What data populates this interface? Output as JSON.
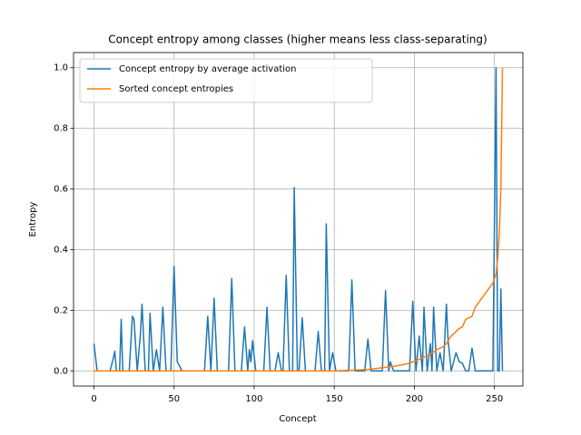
{
  "chart_data": {
    "type": "line",
    "title": "Concept entropy among classes (higher means less class-separating)",
    "xlabel": "Concept",
    "ylabel": "Entropy",
    "x": [
      0,
      2,
      10,
      12,
      13,
      14,
      16,
      17,
      18,
      22,
      24,
      25,
      27,
      29,
      30,
      32,
      34,
      35,
      37,
      39,
      41,
      43,
      45,
      48,
      50,
      52,
      55,
      69,
      71,
      73,
      75,
      77,
      84,
      86,
      88,
      92,
      94,
      96,
      97,
      98,
      99,
      101,
      106,
      108,
      110,
      113,
      115,
      117,
      118,
      120,
      122,
      124,
      125,
      127,
      128,
      130,
      132,
      138,
      140,
      142,
      144,
      145,
      147,
      149,
      151,
      159,
      161,
      163,
      169,
      171,
      173,
      180,
      182,
      184,
      185,
      187,
      197,
      199,
      201,
      203,
      205,
      206,
      208,
      210,
      211,
      212,
      214,
      216,
      218,
      220,
      221,
      223,
      226,
      228,
      230,
      232,
      234,
      236,
      238,
      249,
      251,
      252,
      253,
      254,
      255
    ],
    "series": [
      {
        "name": "Concept entropy by average activation",
        "color": "#1f77b4",
        "values": [
          0.09,
          0,
          0,
          0.04,
          0.065,
          0,
          0,
          0.17,
          0,
          0,
          0.18,
          0.17,
          0,
          0.12,
          0.22,
          0,
          0,
          0.19,
          0,
          0.07,
          0,
          0.21,
          0,
          0,
          0.345,
          0.03,
          0,
          0,
          0.18,
          0,
          0.24,
          0,
          0,
          0.305,
          0,
          0,
          0.145,
          0,
          0.07,
          0.03,
          0.1,
          0,
          0,
          0.21,
          0,
          0,
          0.06,
          0,
          0,
          0.315,
          0,
          0,
          0.605,
          0,
          0,
          0.175,
          0,
          0,
          0.13,
          0,
          0,
          0.485,
          0,
          0.06,
          0,
          0,
          0.3,
          0,
          0,
          0.105,
          0,
          0,
          0.265,
          0,
          0.03,
          0,
          0,
          0.23,
          0,
          0.115,
          0,
          0.21,
          0,
          0.09,
          0,
          0.21,
          0,
          0.06,
          0,
          0.22,
          0.105,
          0,
          0.06,
          0.03,
          0.025,
          0,
          0,
          0.075,
          0,
          0,
          1.0,
          0,
          0,
          0.27,
          0
        ]
      },
      {
        "name": "Sorted concept entropies",
        "color": "#ff7f0e",
        "values": [
          0,
          0,
          0,
          0,
          0,
          0,
          0,
          0,
          0,
          0,
          0,
          0,
          0,
          0,
          0,
          0,
          0,
          0,
          0,
          0,
          0,
          0,
          0,
          0,
          0,
          0,
          0,
          0,
          0,
          0,
          0,
          0,
          0,
          0,
          0,
          0,
          0,
          0,
          0,
          0,
          0,
          0,
          0,
          0,
          0,
          0,
          0,
          0,
          0,
          0,
          0,
          0,
          0,
          0,
          0,
          0,
          0,
          0,
          0,
          0,
          0,
          0,
          0,
          0,
          0,
          0.002,
          0.002,
          0.003,
          0.004,
          0.005,
          0.006,
          0.01,
          0.012,
          0.013,
          0.014,
          0.015,
          0.025,
          0.03,
          0.033,
          0.038,
          0.042,
          0.045,
          0.05,
          0.055,
          0.06,
          0.062,
          0.07,
          0.075,
          0.08,
          0.09,
          0.1,
          0.115,
          0.13,
          0.14,
          0.145,
          0.17,
          0.175,
          0.18,
          0.21,
          0.29,
          0.32,
          0.37,
          0.45,
          0.6,
          1.0
        ]
      }
    ],
    "xlim": [
      -12.75,
      267.75
    ],
    "ylim": [
      -0.05,
      1.05
    ],
    "xticks": [
      0,
      50,
      100,
      150,
      200,
      250
    ],
    "yticks": [
      {
        "value": 0,
        "label": "0.0"
      },
      {
        "value": 0.2,
        "label": "0.2"
      },
      {
        "value": 0.4,
        "label": "0.4"
      },
      {
        "value": 0.6,
        "label": "0.6"
      },
      {
        "value": 0.8,
        "label": "0.8"
      },
      {
        "value": 1,
        "label": "1.0"
      }
    ],
    "grid": true,
    "legend": "upper-left"
  }
}
